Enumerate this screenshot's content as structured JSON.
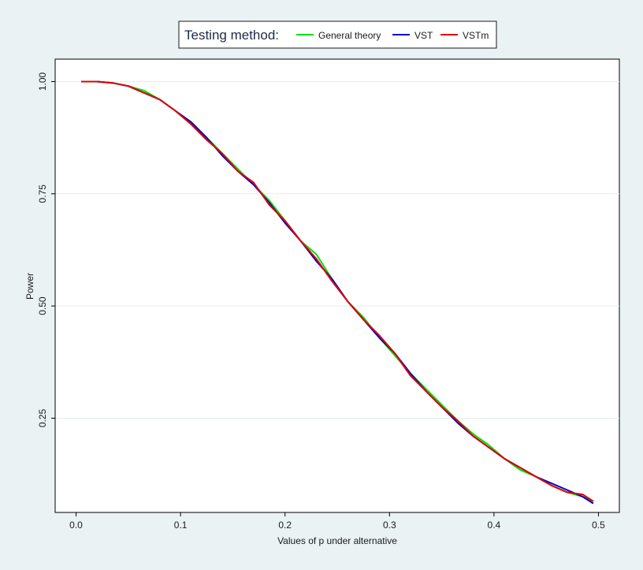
{
  "legend": {
    "title": "Testing method:",
    "placement": "top-center"
  },
  "chart_data": {
    "type": "line",
    "title": "",
    "xlabel": "Values of p under alternative",
    "ylabel": "Power",
    "xlim": [
      -0.02,
      0.52
    ],
    "ylim": [
      0.04,
      1.05
    ],
    "x_ticks": [
      "0.0",
      "0.1",
      "0.2",
      "0.3",
      "0.4",
      "0.5"
    ],
    "y_ticks": [
      "0.25",
      "0.50",
      "0.75",
      "1.00"
    ],
    "grid": "horizontal",
    "x": [
      0.005,
      0.02,
      0.035,
      0.05,
      0.065,
      0.08,
      0.095,
      0.11,
      0.125,
      0.14,
      0.155,
      0.17,
      0.185,
      0.2,
      0.215,
      0.23,
      0.245,
      0.26,
      0.275,
      0.29,
      0.305,
      0.32,
      0.335,
      0.35,
      0.365,
      0.38,
      0.395,
      0.41,
      0.425,
      0.44,
      0.455,
      0.47,
      0.485,
      0.495
    ],
    "series": [
      {
        "name": "General theory",
        "color": "#00e000",
        "values": [
          1.0,
          1.0,
          0.997,
          0.99,
          0.98,
          0.96,
          0.935,
          0.905,
          0.875,
          0.84,
          0.805,
          0.77,
          0.735,
          0.69,
          0.645,
          0.615,
          0.56,
          0.51,
          0.475,
          0.43,
          0.39,
          0.35,
          0.315,
          0.28,
          0.245,
          0.215,
          0.19,
          0.16,
          0.135,
          0.12,
          0.1,
          0.085,
          0.075,
          0.065
        ]
      },
      {
        "name": "VST",
        "color": "#0000c8",
        "values": [
          1.0,
          1.0,
          0.997,
          0.99,
          0.975,
          0.96,
          0.935,
          0.91,
          0.875,
          0.835,
          0.8,
          0.77,
          0.73,
          0.685,
          0.645,
          0.6,
          0.56,
          0.51,
          0.47,
          0.43,
          0.395,
          0.35,
          0.31,
          0.275,
          0.24,
          0.21,
          0.185,
          0.16,
          0.14,
          0.12,
          0.105,
          0.09,
          0.075,
          0.06
        ]
      },
      {
        "name": "VSTm",
        "color": "#e00000",
        "values": [
          1.0,
          1.0,
          0.997,
          0.99,
          0.975,
          0.96,
          0.935,
          0.905,
          0.87,
          0.84,
          0.8,
          0.775,
          0.725,
          0.69,
          0.645,
          0.605,
          0.555,
          0.51,
          0.47,
          0.435,
          0.395,
          0.345,
          0.31,
          0.275,
          0.245,
          0.21,
          0.185,
          0.16,
          0.14,
          0.12,
          0.1,
          0.085,
          0.08,
          0.065
        ]
      }
    ]
  }
}
